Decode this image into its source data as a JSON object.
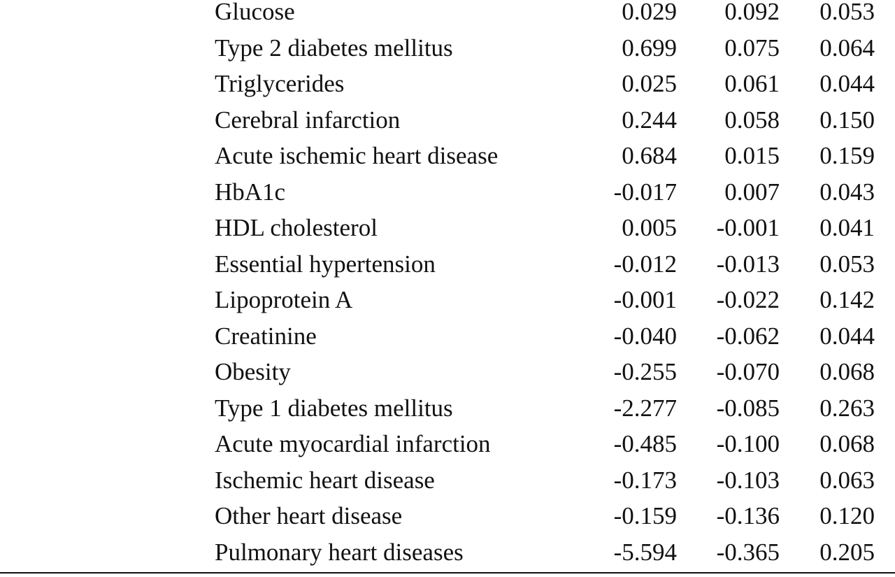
{
  "table": {
    "rows": [
      {
        "label": "Glucose",
        "v1": "0.029",
        "v2": "0.092",
        "v3": "0.053"
      },
      {
        "label": "Type 2 diabetes mellitus",
        "v1": "0.699",
        "v2": "0.075",
        "v3": "0.064"
      },
      {
        "label": "Triglycerides",
        "v1": "0.025",
        "v2": "0.061",
        "v3": "0.044"
      },
      {
        "label": "Cerebral infarction",
        "v1": "0.244",
        "v2": "0.058",
        "v3": "0.150"
      },
      {
        "label": "Acute ischemic heart disease",
        "v1": "0.684",
        "v2": "0.015",
        "v3": "0.159"
      },
      {
        "label": "HbA1c",
        "v1": "-0.017",
        "v2": "0.007",
        "v3": "0.043"
      },
      {
        "label": "HDL cholesterol",
        "v1": "0.005",
        "v2": "-0.001",
        "v3": "0.041"
      },
      {
        "label": "Essential hypertension",
        "v1": "-0.012",
        "v2": "-0.013",
        "v3": "0.053"
      },
      {
        "label": "Lipoprotein A",
        "v1": "-0.001",
        "v2": "-0.022",
        "v3": "0.142"
      },
      {
        "label": "Creatinine",
        "v1": "-0.040",
        "v2": "-0.062",
        "v3": "0.044"
      },
      {
        "label": "Obesity",
        "v1": "-0.255",
        "v2": "-0.070",
        "v3": "0.068"
      },
      {
        "label": "Type 1 diabetes mellitus",
        "v1": "-2.277",
        "v2": "-0.085",
        "v3": "0.263"
      },
      {
        "label": "Acute myocardial infarction",
        "v1": "-0.485",
        "v2": "-0.100",
        "v3": "0.068"
      },
      {
        "label": "Ischemic heart disease",
        "v1": "-0.173",
        "v2": "-0.103",
        "v3": "0.063"
      },
      {
        "label": "Other heart disease",
        "v1": "-0.159",
        "v2": "-0.136",
        "v3": "0.120"
      },
      {
        "label": "Pulmonary heart diseases",
        "v1": "-5.594",
        "v2": "-0.365",
        "v3": "0.205"
      }
    ]
  }
}
